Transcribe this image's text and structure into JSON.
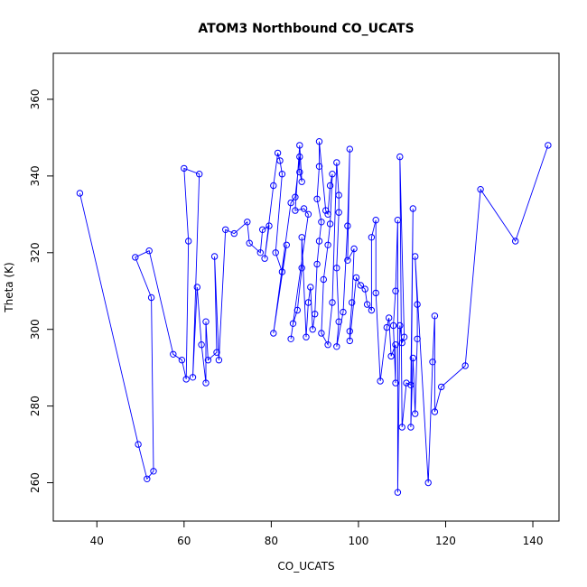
{
  "chart_data": {
    "type": "line",
    "title": "ATOM3 Northbound CO_UCATS",
    "xlabel": "CO_UCATS",
    "ylabel": "Theta (K)",
    "xlim": [
      30,
      146
    ],
    "ylim": [
      250,
      372
    ],
    "xticks": [
      40,
      60,
      80,
      100,
      120,
      140
    ],
    "yticks": [
      260,
      280,
      300,
      320,
      340,
      360
    ],
    "grid": false,
    "legend": "none",
    "colors": {
      "series": "#0000ff",
      "axis": "#000000",
      "background": "#ffffff"
    },
    "series": [
      {
        "marker": "open-circle",
        "points": [
          [
            36.1,
            335.5
          ],
          [
            49.5,
            270.0
          ],
          [
            51.5,
            261.0
          ],
          [
            53.0,
            263.0
          ],
          [
            52.5,
            308.3
          ],
          [
            48.8,
            318.8
          ],
          [
            52.0,
            320.5
          ],
          [
            57.5,
            293.5
          ],
          [
            59.5,
            292.0
          ],
          [
            60.5,
            287.0
          ],
          [
            61.0,
            323.0
          ],
          [
            60.0,
            342.0
          ],
          [
            63.5,
            340.5
          ],
          [
            62.0,
            287.5
          ],
          [
            63.0,
            311.0
          ],
          [
            64.0,
            296.0
          ],
          [
            65.0,
            286.0
          ],
          [
            65.0,
            302.0
          ],
          [
            65.5,
            292.0
          ],
          [
            67.5,
            294.0
          ],
          [
            67.0,
            319.0
          ],
          [
            68.0,
            292.0
          ],
          [
            69.5,
            326.0
          ],
          [
            71.5,
            325.0
          ],
          [
            74.5,
            328.0
          ],
          [
            75.0,
            322.5
          ],
          [
            77.5,
            320.0
          ],
          [
            78.0,
            326.0
          ],
          [
            79.5,
            327.0
          ],
          [
            78.5,
            318.5
          ],
          [
            80.5,
            337.5
          ],
          [
            81.5,
            346.0
          ],
          [
            82.0,
            344.0
          ],
          [
            82.5,
            340.5
          ],
          [
            81.0,
            320.0
          ],
          [
            82.5,
            315.0
          ],
          [
            83.5,
            322.0
          ],
          [
            80.5,
            299.0
          ],
          [
            84.5,
            333.0
          ],
          [
            85.5,
            334.5
          ],
          [
            86.5,
            345.0
          ],
          [
            86.5,
            341.0
          ],
          [
            87.0,
            338.5
          ],
          [
            86.5,
            348.0
          ],
          [
            85.5,
            331.0
          ],
          [
            87.5,
            331.5
          ],
          [
            88.5,
            330.0
          ],
          [
            84.5,
            297.5
          ],
          [
            85.0,
            301.5
          ],
          [
            86.0,
            305.0
          ],
          [
            87.0,
            316.0
          ],
          [
            87.0,
            324.0
          ],
          [
            88.0,
            298.0
          ],
          [
            88.5,
            307.0
          ],
          [
            89.0,
            311.0
          ],
          [
            89.5,
            300.0
          ],
          [
            90.0,
            304.0
          ],
          [
            90.5,
            317.0
          ],
          [
            91.0,
            323.0
          ],
          [
            91.5,
            328.0
          ],
          [
            90.5,
            334.0
          ],
          [
            91.0,
            342.5
          ],
          [
            91.0,
            349.0
          ],
          [
            92.5,
            331.0
          ],
          [
            93.0,
            330.0
          ],
          [
            93.5,
            337.5
          ],
          [
            94.0,
            340.5
          ],
          [
            93.5,
            327.5
          ],
          [
            93.0,
            322.0
          ],
          [
            92.0,
            313.0
          ],
          [
            91.5,
            299.0
          ],
          [
            93.0,
            296.0
          ],
          [
            94.0,
            307.0
          ],
          [
            95.0,
            343.5
          ],
          [
            95.5,
            335.0
          ],
          [
            95.5,
            330.5
          ],
          [
            95.0,
            316.0
          ],
          [
            95.5,
            302.0
          ],
          [
            95.0,
            295.5
          ],
          [
            96.5,
            304.5
          ],
          [
            97.5,
            327.0
          ],
          [
            98.0,
            347.0
          ],
          [
            97.5,
            318.0
          ],
          [
            99.0,
            321.0
          ],
          [
            98.5,
            307.0
          ],
          [
            98.0,
            299.5
          ],
          [
            98.0,
            297.0
          ],
          [
            99.5,
            313.5
          ],
          [
            100.5,
            311.5
          ],
          [
            101.5,
            310.5
          ],
          [
            102.0,
            306.5
          ],
          [
            103.0,
            305.0
          ],
          [
            103.0,
            324.0
          ],
          [
            104.0,
            328.5
          ],
          [
            104.0,
            309.5
          ],
          [
            105.0,
            286.5
          ],
          [
            106.5,
            300.5
          ],
          [
            107.0,
            303.0
          ],
          [
            107.5,
            293.0
          ],
          [
            108.5,
            296.0
          ],
          [
            108.5,
            286.0
          ],
          [
            108.0,
            301.0
          ],
          [
            108.5,
            310.0
          ],
          [
            109.0,
            328.5
          ],
          [
            109.0,
            257.5
          ],
          [
            109.5,
            301.0
          ],
          [
            110.0,
            296.5
          ],
          [
            110.5,
            298.0
          ],
          [
            109.5,
            345.0
          ],
          [
            110.0,
            274.5
          ],
          [
            111.0,
            286.0
          ],
          [
            112.0,
            285.5
          ],
          [
            112.5,
            331.5
          ],
          [
            112.0,
            274.5
          ],
          [
            112.5,
            292.5
          ],
          [
            113.0,
            278.0
          ],
          [
            113.5,
            297.5
          ],
          [
            113.5,
            306.5
          ],
          [
            113.0,
            319.0
          ],
          [
            116.0,
            260.0
          ],
          [
            117.0,
            291.5
          ],
          [
            117.5,
            303.5
          ],
          [
            117.5,
            278.5
          ],
          [
            119.0,
            285.0
          ],
          [
            124.5,
            290.5
          ],
          [
            128.0,
            336.5
          ],
          [
            136.0,
            323.0
          ],
          [
            143.5,
            348.0
          ]
        ]
      }
    ]
  }
}
